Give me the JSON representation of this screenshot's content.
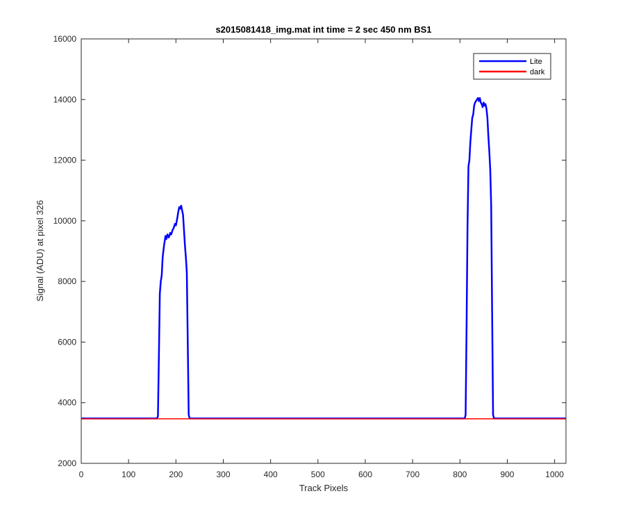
{
  "chart_data": {
    "type": "line",
    "title": "s2015081418_img.mat int time = 2 sec  450 nm BS1",
    "xlabel": "Track Pixels",
    "ylabel": "Signal (ADU) at pixel 326",
    "xlim": [
      0,
      1024
    ],
    "ylim": [
      2000,
      16000
    ],
    "xticks": [
      0,
      100,
      200,
      300,
      400,
      500,
      600,
      700,
      800,
      900,
      1000
    ],
    "yticks": [
      2000,
      4000,
      6000,
      8000,
      10000,
      12000,
      14000,
      16000
    ],
    "grid": false,
    "legend_position": "top-right",
    "series": [
      {
        "name": "Lite",
        "color": "#0000ff",
        "x": [
          0,
          160,
          162,
          164,
          166,
          168,
          170,
          172,
          175,
          178,
          180,
          182,
          185,
          188,
          190,
          193,
          195,
          198,
          200,
          203,
          205,
          207,
          209,
          211,
          213,
          215,
          217,
          219,
          221,
          223,
          225,
          227,
          229,
          231,
          400,
          600,
          810,
          812,
          814,
          816,
          818,
          820,
          822,
          824,
          826,
          828,
          830,
          832,
          834,
          836,
          838,
          840,
          842,
          844,
          846,
          848,
          850,
          852,
          854,
          856,
          858,
          860,
          862,
          864,
          866,
          868,
          870,
          872,
          874,
          876,
          878,
          1024
        ],
        "y": [
          3480,
          3480,
          3550,
          5500,
          7600,
          8000,
          8200,
          8800,
          9200,
          9500,
          9400,
          9550,
          9450,
          9600,
          9550,
          9700,
          9750,
          9900,
          9850,
          10100,
          10300,
          10450,
          10400,
          10500,
          10350,
          10200,
          9700,
          9200,
          8800,
          8300,
          6000,
          3600,
          3480,
          3480,
          3480,
          3480,
          3480,
          3600,
          6500,
          9800,
          11800,
          12000,
          12600,
          13000,
          13400,
          13500,
          13800,
          13900,
          13950,
          14000,
          14050,
          13950,
          14050,
          13900,
          13850,
          13750,
          13900,
          13800,
          13850,
          13700,
          13400,
          12800,
          12300,
          11700,
          10500,
          7000,
          3600,
          3480,
          3480,
          3480,
          3480,
          3480
        ]
      },
      {
        "name": "dark",
        "color": "#ff0000",
        "x": [
          0,
          1024
        ],
        "y": [
          3470,
          3470
        ]
      }
    ]
  }
}
